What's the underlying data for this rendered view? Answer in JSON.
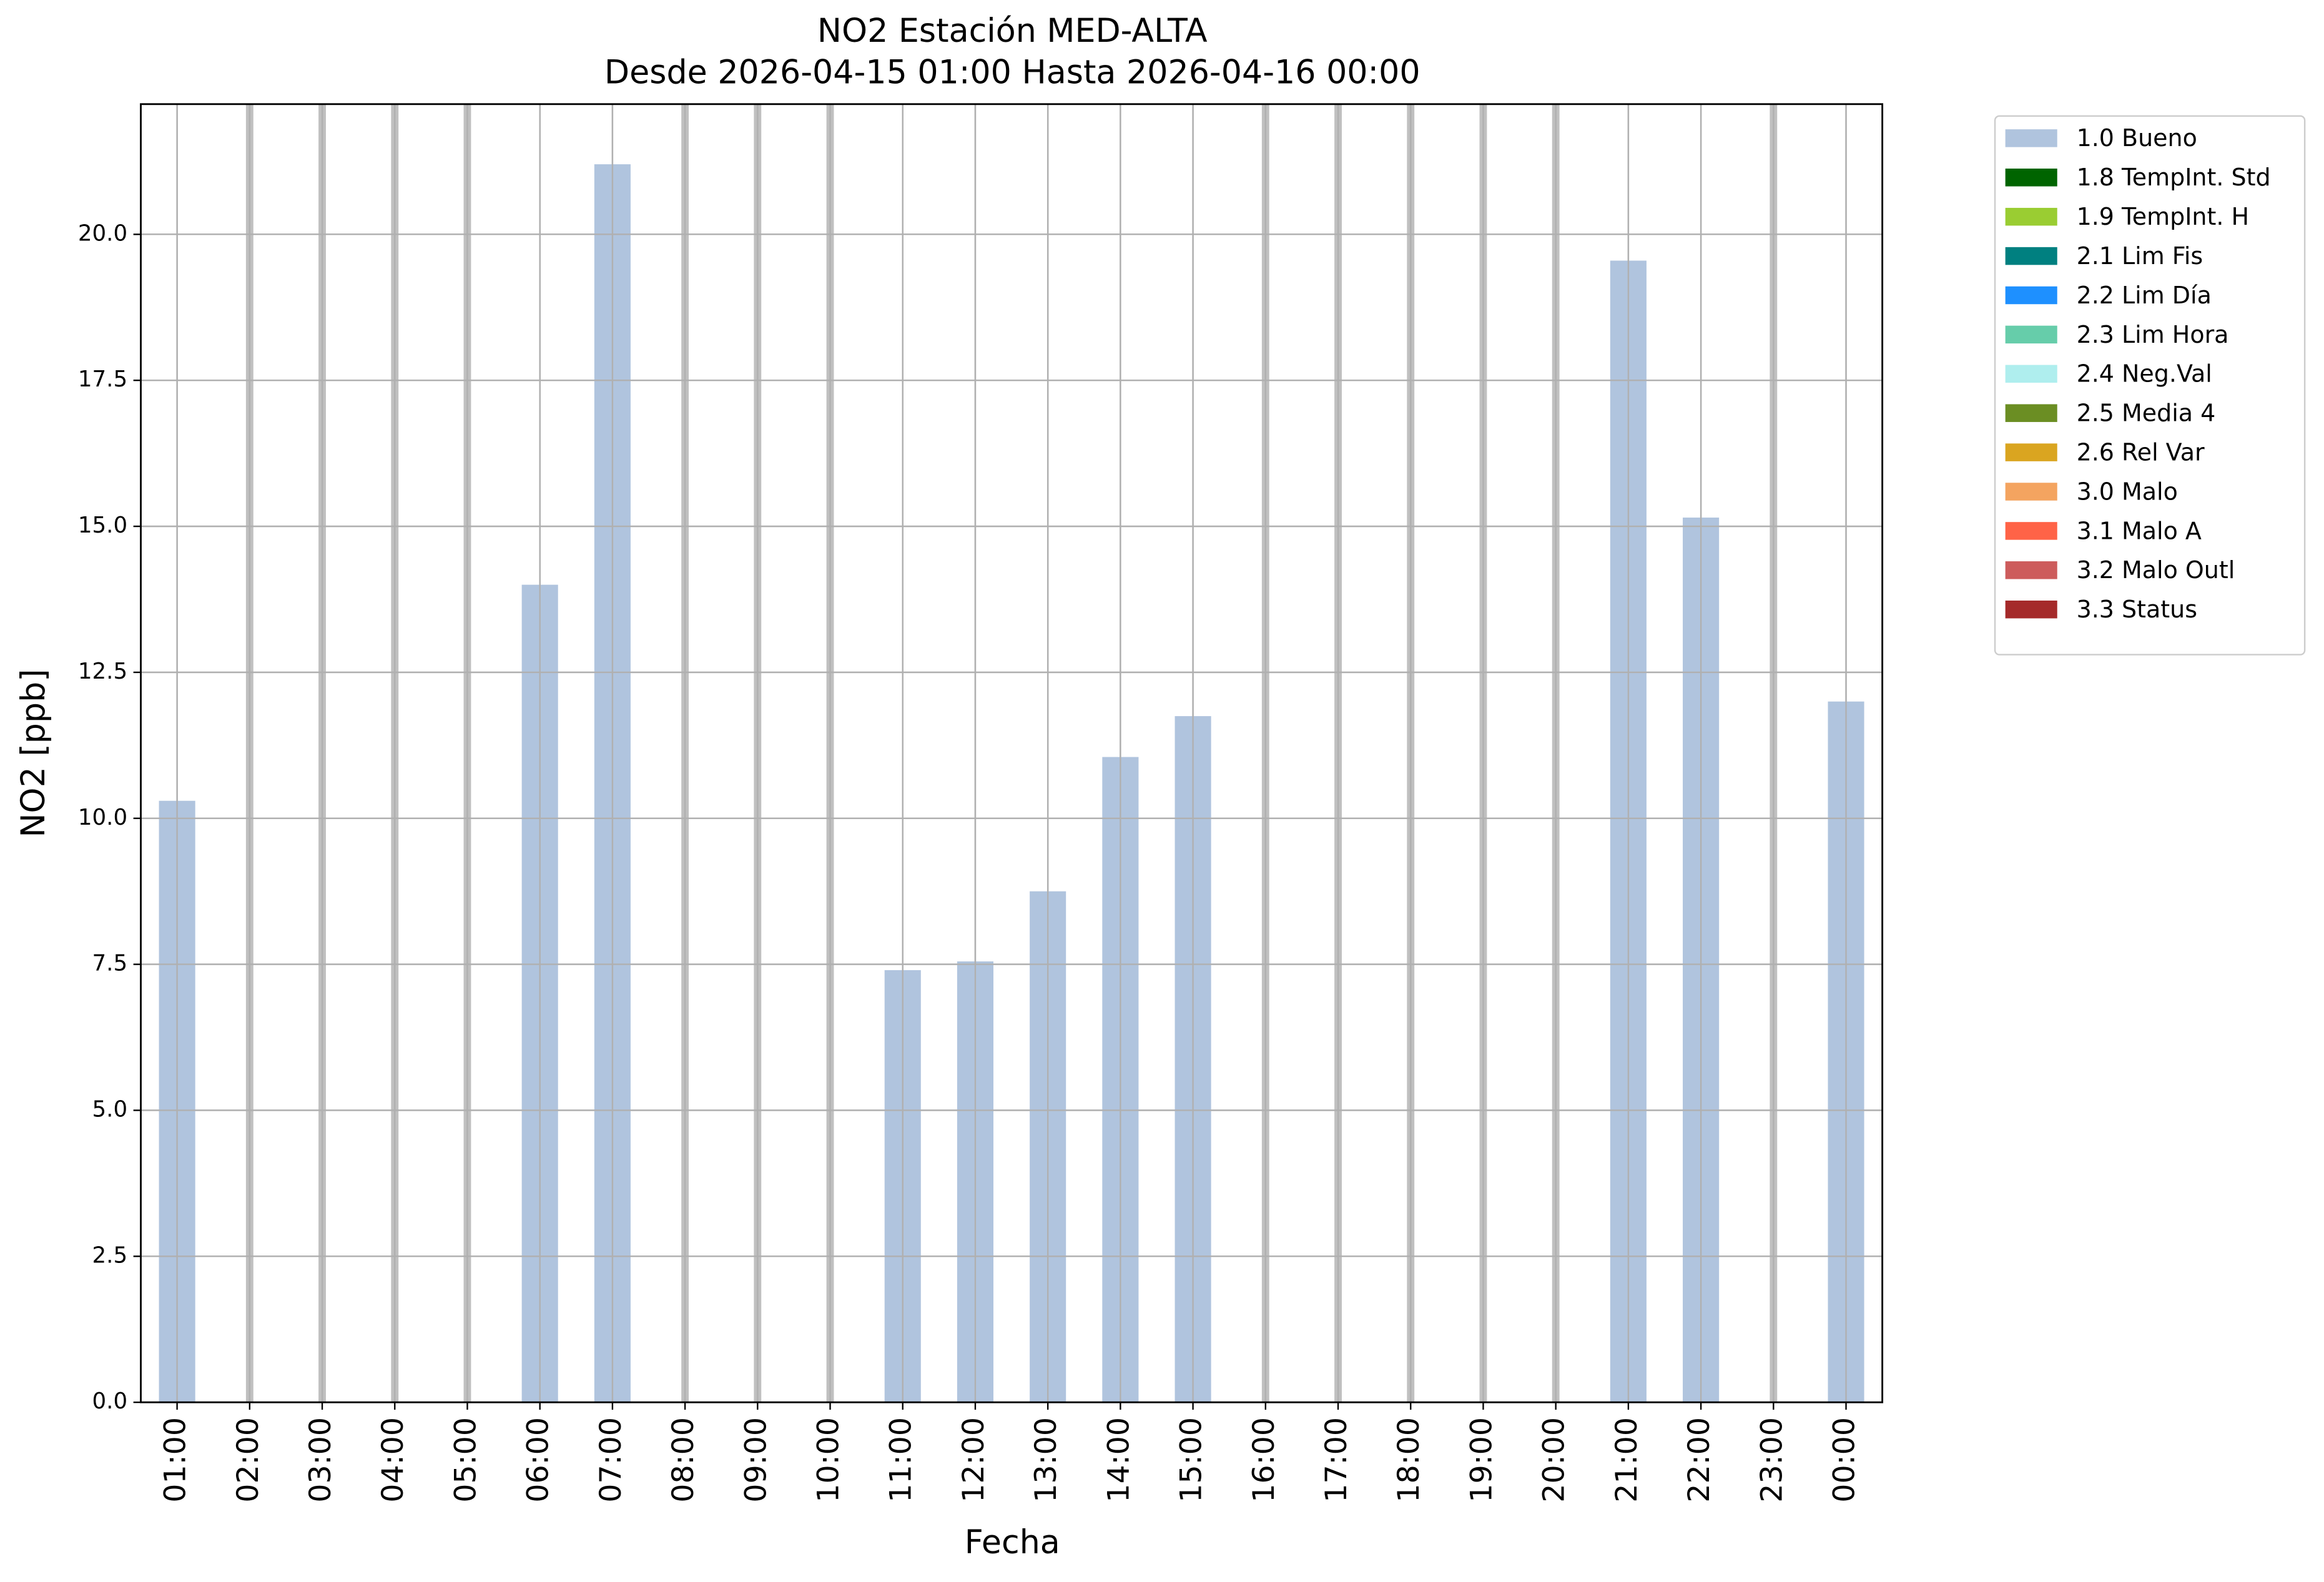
{
  "chart_data": {
    "type": "bar",
    "title": "NO2 Estación MED-ALTA",
    "subtitle": "Desde 2026-04-15 01:00 Hasta 2026-04-16 00:00",
    "x_label": "Fecha",
    "y_label": "NO2 [ppb]",
    "categories": [
      "01:00",
      "02:00",
      "03:00",
      "04:00",
      "05:00",
      "06:00",
      "07:00",
      "08:00",
      "09:00",
      "10:00",
      "11:00",
      "12:00",
      "13:00",
      "14:00",
      "15:00",
      "16:00",
      "17:00",
      "18:00",
      "19:00",
      "20:00",
      "21:00",
      "22:00",
      "23:00",
      "00:00"
    ],
    "series": [
      {
        "name": "1.0 Bueno",
        "color": "#b0c4de",
        "values": [
          10.3,
          null,
          null,
          null,
          null,
          14.0,
          21.2,
          null,
          null,
          null,
          7.4,
          7.55,
          8.75,
          11.05,
          11.75,
          null,
          null,
          null,
          null,
          null,
          19.55,
          15.15,
          null,
          12.0
        ]
      },
      {
        "name": "1.8 TempInt. Std",
        "color": "#006400",
        "values": [
          null,
          null,
          null,
          null,
          null,
          null,
          null,
          null,
          null,
          null,
          null,
          null,
          null,
          null,
          null,
          null,
          null,
          null,
          null,
          null,
          null,
          null,
          null,
          null
        ]
      },
      {
        "name": "1.9 TempInt. H",
        "color": "#9acd32",
        "values": [
          null,
          null,
          null,
          null,
          null,
          null,
          null,
          null,
          null,
          null,
          null,
          null,
          null,
          null,
          null,
          null,
          null,
          null,
          null,
          null,
          null,
          null,
          null,
          null
        ]
      },
      {
        "name": "2.1 Lim Fis",
        "color": "#008080",
        "values": [
          null,
          null,
          null,
          null,
          null,
          null,
          null,
          null,
          null,
          null,
          null,
          null,
          null,
          null,
          null,
          null,
          null,
          null,
          null,
          null,
          null,
          null,
          null,
          null
        ]
      },
      {
        "name": "2.2 Lim Día",
        "color": "#1e90ff",
        "values": [
          null,
          null,
          null,
          null,
          null,
          null,
          null,
          null,
          null,
          null,
          null,
          null,
          null,
          null,
          null,
          null,
          null,
          null,
          null,
          null,
          null,
          null,
          null,
          null
        ]
      },
      {
        "name": "2.3 Lim Hora",
        "color": "#66cdaa",
        "values": [
          null,
          null,
          null,
          null,
          null,
          null,
          null,
          null,
          null,
          null,
          null,
          null,
          null,
          null,
          null,
          null,
          null,
          null,
          null,
          null,
          null,
          null,
          null,
          null
        ]
      },
      {
        "name": "2.4 Neg.Val",
        "color": "#afeeee",
        "values": [
          null,
          null,
          null,
          null,
          null,
          null,
          null,
          null,
          null,
          null,
          null,
          null,
          null,
          null,
          null,
          null,
          null,
          null,
          null,
          null,
          null,
          null,
          null,
          null
        ]
      },
      {
        "name": "2.5 Media 4",
        "color": "#6b8e23",
        "values": [
          null,
          null,
          null,
          null,
          null,
          null,
          null,
          null,
          null,
          null,
          null,
          null,
          null,
          null,
          null,
          null,
          null,
          null,
          null,
          null,
          null,
          null,
          null,
          null
        ]
      },
      {
        "name": "2.6 Rel Var",
        "color": "#daa520",
        "values": [
          null,
          null,
          null,
          null,
          null,
          null,
          null,
          null,
          null,
          null,
          null,
          null,
          null,
          null,
          null,
          null,
          null,
          null,
          null,
          null,
          null,
          null,
          null,
          null
        ]
      },
      {
        "name": "3.0 Malo",
        "color": "#f4a460",
        "values": [
          null,
          null,
          null,
          null,
          null,
          null,
          null,
          null,
          null,
          null,
          null,
          null,
          null,
          null,
          null,
          null,
          null,
          null,
          null,
          null,
          null,
          null,
          null,
          null
        ]
      },
      {
        "name": "3.1 Malo A",
        "color": "#ff6347",
        "values": [
          null,
          null,
          null,
          null,
          null,
          null,
          null,
          null,
          null,
          null,
          null,
          null,
          null,
          null,
          null,
          null,
          null,
          null,
          null,
          null,
          null,
          null,
          null,
          null
        ]
      },
      {
        "name": "3.2 Malo Outl",
        "color": "#cd5c5c",
        "values": [
          null,
          null,
          null,
          null,
          null,
          null,
          null,
          null,
          null,
          null,
          null,
          null,
          null,
          null,
          null,
          null,
          null,
          null,
          null,
          null,
          null,
          null,
          null,
          null
        ]
      },
      {
        "name": "3.3 Status",
        "color": "#a52a2a",
        "values": [
          null,
          null,
          null,
          null,
          null,
          null,
          null,
          null,
          null,
          null,
          null,
          null,
          null,
          null,
          null,
          null,
          null,
          null,
          null,
          null,
          null,
          null,
          null,
          null
        ]
      }
    ],
    "ylim": [
      0,
      22.23
    ],
    "yticks": [
      {
        "value": 0,
        "label": "0.0"
      },
      2.5,
      {
        "value": 5,
        "label": "5.0"
      },
      7.5,
      {
        "value": 10,
        "label": "10.0"
      },
      12.5,
      {
        "value": 15,
        "label": "15.0"
      },
      17.5,
      {
        "value": 20,
        "label": "20.0"
      }
    ],
    "grid": true,
    "legend": "outside-right"
  }
}
